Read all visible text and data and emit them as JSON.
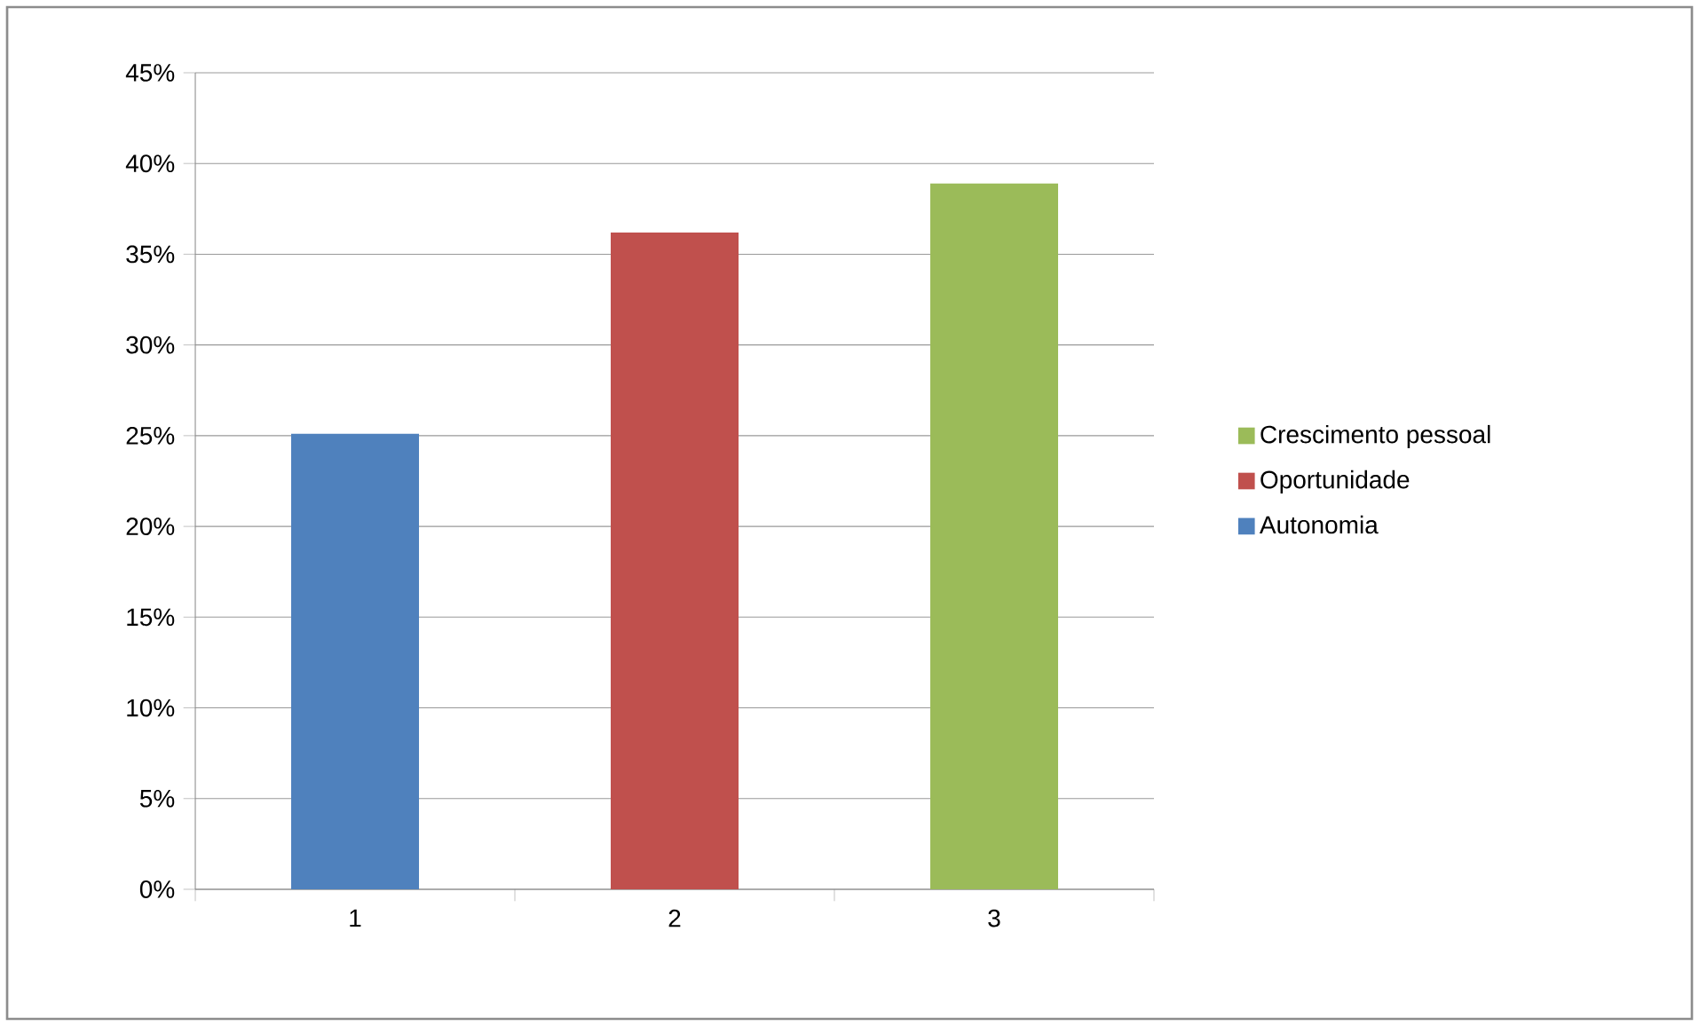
{
  "chart_data": {
    "type": "bar",
    "categories": [
      "1",
      "2",
      "3"
    ],
    "series": [
      {
        "name": "Autonomia",
        "color": "#4f81bd",
        "values": [
          25.1,
          null,
          null
        ]
      },
      {
        "name": "Oportunidade",
        "color": "#c0504d",
        "values": [
          null,
          36.2,
          null
        ]
      },
      {
        "name": "Crescimento pessoal",
        "color": "#9bbb59",
        "values": [
          null,
          null,
          38.9
        ]
      }
    ],
    "ylim": [
      0,
      45
    ],
    "yticks": [
      {
        "value": 0,
        "label": "0%"
      },
      {
        "value": 5,
        "label": "5%"
      },
      {
        "value": 10,
        "label": "10%"
      },
      {
        "value": 15,
        "label": "15%"
      },
      {
        "value": 20,
        "label": "20%"
      },
      {
        "value": 25,
        "label": "25%"
      },
      {
        "value": 30,
        "label": "30%"
      },
      {
        "value": 35,
        "label": "35%"
      },
      {
        "value": 40,
        "label": "40%"
      },
      {
        "value": 45,
        "label": "45%"
      }
    ],
    "grid": "y",
    "legend": "right"
  }
}
